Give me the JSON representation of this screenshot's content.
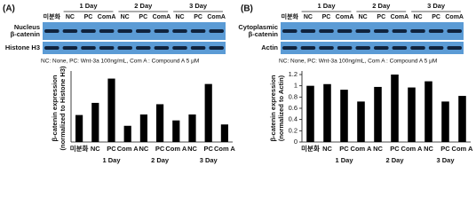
{
  "chart_data": [
    {
      "type": "bar",
      "panel_label": "(A)",
      "blot": {
        "groups": [
          "1 Day",
          "2 Day",
          "3 Day"
        ],
        "lanes": [
          "미분화",
          "NC",
          "PC",
          "ComA",
          "NC",
          "PC",
          "ComA",
          "NC",
          "PC",
          "ComA"
        ],
        "rows": [
          [
            "Nucleus",
            "β-catenin"
          ],
          [
            "Histone H3"
          ]
        ]
      },
      "note": "NC: None,  PC: Wnt-3a  100ng/mL,  Com A : Compound A  5 μM",
      "ylabel": [
        "β-catenin expression",
        "(normalized to Histone H3)"
      ],
      "categories": [
        "미분화",
        "NC",
        "PC",
        "Com A",
        "NC",
        "PC",
        "Com A",
        "NC",
        "PC",
        "Com A"
      ],
      "groups": [
        "1 Day",
        "2 Day",
        "3 Day"
      ],
      "values": [
        1.0,
        1.45,
        2.35,
        0.6,
        1.02,
        1.4,
        0.8,
        1.02,
        2.15,
        0.65
      ],
      "color": "#000000",
      "ylim": [
        0,
        2.5
      ]
    },
    {
      "type": "bar",
      "panel_label": "(B)",
      "blot": {
        "groups": [
          "1 Day",
          "2 Day",
          "3 Day"
        ],
        "lanes": [
          "미분화",
          "NC",
          "PC",
          "ComA",
          "NC",
          "PC",
          "ComA",
          "NC",
          "PC",
          "ComA"
        ],
        "rows": [
          [
            "Cytoplasmic",
            "β-catenin"
          ],
          [
            "Actin"
          ]
        ]
      },
      "note": "NC: None,  PC: Wnt-3a  100ng/mL,  Com A : Compound A  5 μM",
      "ylabel": [
        "β-catenin expression",
        "(normalized to Actin)"
      ],
      "categories": [
        "미분화",
        "NC",
        "PC",
        "Com A",
        "NC",
        "PC",
        "Com A",
        "NC",
        "PC",
        "Com A"
      ],
      "groups": [
        "1 Day",
        "2 Day",
        "3 Day"
      ],
      "values": [
        1.0,
        1.03,
        0.93,
        0.72,
        0.98,
        1.2,
        0.97,
        1.08,
        0.72,
        0.82
      ],
      "color": "#000000",
      "ylim": [
        0,
        1.2
      ],
      "yticks": [
        0,
        0.2,
        0.4,
        0.6,
        0.8,
        1,
        1.2
      ]
    }
  ]
}
